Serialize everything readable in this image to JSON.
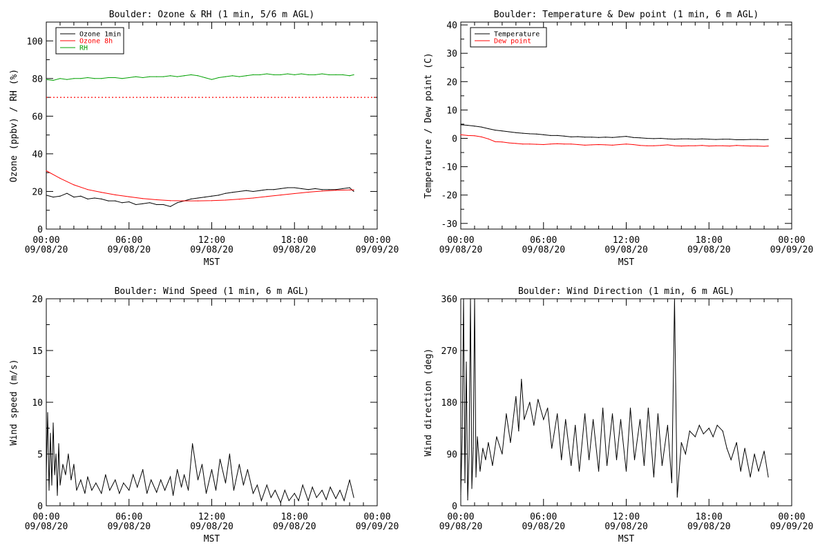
{
  "colors": {
    "black": "#000000",
    "red": "#ff0000",
    "green": "#00a000"
  },
  "chart_data": [
    {
      "type": "line",
      "title": "Boulder: Ozone & RH (1 min, 5/6 m AGL)",
      "xlabel": "MST",
      "ylabel": "Ozone (ppbv) / RH (%)",
      "xlim": [
        0,
        24
      ],
      "ylim": [
        0,
        110
      ],
      "x_ticks": [
        {
          "v": 0,
          "l1": "00:00",
          "l2": "09/08/20"
        },
        {
          "v": 6,
          "l1": "06:00",
          "l2": "09/08/20"
        },
        {
          "v": 12,
          "l1": "12:00",
          "l2": "09/08/20"
        },
        {
          "v": 18,
          "l1": "18:00",
          "l2": "09/08/20"
        },
        {
          "v": 24,
          "l1": "00:00",
          "l2": "09/09/20"
        }
      ],
      "y_ticks": [
        0,
        20,
        40,
        60,
        80,
        100
      ],
      "legend": {
        "position": "top-left",
        "entries": [
          {
            "name": "Ozone 1min",
            "color": "#000000"
          },
          {
            "name": "Ozone 8h",
            "color": "#ff0000"
          },
          {
            "name": "RH",
            "color": "#00a000"
          }
        ]
      },
      "reference_lines": [
        {
          "y": 70,
          "color": "#ff0000",
          "style": "dotted"
        }
      ],
      "series": [
        {
          "name": "Ozone 1min",
          "color": "#000000",
          "x": [
            0,
            0.5,
            1,
            1.5,
            2,
            2.5,
            3,
            3.5,
            4,
            4.5,
            5,
            5.5,
            6,
            6.5,
            7,
            7.5,
            8,
            8.5,
            9,
            9.5,
            10,
            10.5,
            11,
            11.5,
            12,
            12.5,
            13,
            13.5,
            14,
            14.5,
            15,
            15.5,
            16,
            16.5,
            17,
            17.5,
            18,
            18.5,
            19,
            19.5,
            20,
            20.5,
            21,
            21.5,
            22,
            22.3
          ],
          "y": [
            18,
            17,
            17.5,
            19,
            17,
            17.5,
            16,
            16.5,
            16,
            15,
            15,
            14,
            14.5,
            13,
            13.5,
            14,
            13,
            13,
            12,
            14,
            15,
            16,
            16.5,
            17,
            17.5,
            18,
            19,
            19.5,
            20,
            20.5,
            20,
            20.5,
            21,
            21,
            21.5,
            22,
            22,
            21.5,
            21,
            21.5,
            21,
            21,
            21,
            21.5,
            22,
            20
          ]
        },
        {
          "name": "Ozone 8h",
          "color": "#ff0000",
          "x": [
            0,
            1,
            2,
            3,
            4,
            5,
            6,
            7,
            8,
            9,
            10,
            11,
            12,
            13,
            14,
            15,
            16,
            17,
            18,
            19,
            20,
            21,
            22,
            22.3
          ],
          "y": [
            31,
            27,
            23.5,
            21,
            19.5,
            18.2,
            17.2,
            16.2,
            15.6,
            15.1,
            15,
            15,
            15.1,
            15.4,
            15.9,
            16.5,
            17.3,
            18.1,
            18.9,
            19.6,
            20.2,
            20.6,
            20.8,
            20.8
          ]
        },
        {
          "name": "RH",
          "color": "#00a000",
          "x": [
            0,
            0.5,
            1,
            1.5,
            2,
            2.5,
            3,
            3.5,
            4,
            4.5,
            5,
            5.5,
            6,
            6.5,
            7,
            7.5,
            8,
            8.5,
            9,
            9.5,
            10,
            10.5,
            11,
            11.5,
            12,
            12.5,
            13,
            13.5,
            14,
            14.5,
            15,
            15.5,
            16,
            16.5,
            17,
            17.5,
            18,
            18.5,
            19,
            19.5,
            20,
            20.5,
            21,
            21.5,
            22,
            22.3
          ],
          "y": [
            79.5,
            79,
            80,
            79.5,
            80,
            80,
            80.5,
            80,
            80,
            80.5,
            80.5,
            80,
            80.5,
            81,
            80.5,
            81,
            81,
            81,
            81.5,
            81,
            81.5,
            82,
            81.5,
            80.5,
            79.5,
            80.5,
            81,
            81.5,
            81,
            81.5,
            82,
            82,
            82.5,
            82,
            82,
            82.5,
            82,
            82.5,
            82,
            82,
            82.5,
            82,
            82,
            82,
            81.5,
            82
          ]
        }
      ]
    },
    {
      "type": "line",
      "title": "Boulder: Temperature & Dew point (1 min, 6 m AGL)",
      "xlabel": "MST",
      "ylabel": "Temperature / Dew point (C)",
      "xlim": [
        0,
        24
      ],
      "ylim": [
        -32,
        41
      ],
      "x_ticks": [
        {
          "v": 0,
          "l1": "00:00",
          "l2": "09/08/20"
        },
        {
          "v": 6,
          "l1": "06:00",
          "l2": "09/08/20"
        },
        {
          "v": 12,
          "l1": "12:00",
          "l2": "09/08/20"
        },
        {
          "v": 18,
          "l1": "18:00",
          "l2": "09/08/20"
        },
        {
          "v": 24,
          "l1": "00:00",
          "l2": "09/09/20"
        }
      ],
      "y_ticks": [
        -30,
        -20,
        -10,
        0,
        10,
        20,
        30,
        40
      ],
      "legend": {
        "position": "top-left",
        "entries": [
          {
            "name": "Temperature",
            "color": "#000000"
          },
          {
            "name": "Dew point",
            "color": "#ff0000"
          }
        ]
      },
      "series": [
        {
          "name": "Temperature",
          "color": "#000000",
          "x": [
            0,
            0.5,
            1,
            1.5,
            2,
            2.5,
            3,
            3.5,
            4,
            4.5,
            5,
            5.5,
            6,
            6.5,
            7,
            7.5,
            8,
            8.5,
            9,
            9.5,
            10,
            10.5,
            11,
            11.5,
            12,
            12.5,
            13,
            13.5,
            14,
            14.5,
            15,
            15.5,
            16,
            16.5,
            17,
            17.5,
            18,
            18.5,
            19,
            19.5,
            20,
            20.5,
            21,
            21.5,
            22,
            22.3
          ],
          "y": [
            4.8,
            4.6,
            4.3,
            4,
            3.4,
            2.9,
            2.6,
            2.3,
            2,
            1.8,
            1.6,
            1.5,
            1.3,
            1,
            1,
            0.8,
            0.5,
            0.6,
            0.4,
            0.4,
            0.3,
            0.4,
            0.3,
            0.5,
            0.7,
            0.3,
            0.2,
            0,
            -0.1,
            0,
            -0.2,
            -0.3,
            -0.2,
            -0.2,
            -0.3,
            -0.2,
            -0.3,
            -0.4,
            -0.3,
            -0.3,
            -0.5,
            -0.5,
            -0.4,
            -0.4,
            -0.5,
            -0.4
          ]
        },
        {
          "name": "Dew point",
          "color": "#ff0000",
          "x": [
            0,
            0.5,
            1,
            1.5,
            2,
            2.5,
            3,
            3.5,
            4,
            4.5,
            5,
            5.5,
            6,
            6.5,
            7,
            7.5,
            8,
            8.5,
            9,
            9.5,
            10,
            10.5,
            11,
            11.5,
            12,
            12.5,
            13,
            13.5,
            14,
            14.5,
            15,
            15.5,
            16,
            16.5,
            17,
            17.5,
            18,
            18.5,
            19,
            19.5,
            20,
            20.5,
            21,
            21.5,
            22,
            22.3
          ],
          "y": [
            1.3,
            1,
            0.9,
            0.5,
            -0.2,
            -1.2,
            -1.3,
            -1.6,
            -1.8,
            -2,
            -2,
            -2.1,
            -2.2,
            -2,
            -1.9,
            -2,
            -2,
            -2.2,
            -2.4,
            -2.3,
            -2.2,
            -2.3,
            -2.4,
            -2.2,
            -2,
            -2.2,
            -2.5,
            -2.6,
            -2.6,
            -2.5,
            -2.3,
            -2.6,
            -2.7,
            -2.6,
            -2.6,
            -2.5,
            -2.7,
            -2.6,
            -2.6,
            -2.7,
            -2.5,
            -2.6,
            -2.7,
            -2.7,
            -2.8,
            -2.7
          ]
        }
      ]
    },
    {
      "type": "line",
      "title": "Boulder: Wind Speed (1 min, 6 m AGL)",
      "xlabel": "MST",
      "ylabel": "Wind speed (m/s)",
      "xlim": [
        0,
        24
      ],
      "ylim": [
        0,
        20
      ],
      "x_ticks": [
        {
          "v": 0,
          "l1": "00:00",
          "l2": "09/08/20"
        },
        {
          "v": 6,
          "l1": "06:00",
          "l2": "09/08/20"
        },
        {
          "v": 12,
          "l1": "12:00",
          "l2": "09/08/20"
        },
        {
          "v": 18,
          "l1": "18:00",
          "l2": "09/08/20"
        },
        {
          "v": 24,
          "l1": "00:00",
          "l2": "09/09/20"
        }
      ],
      "y_ticks": [
        0,
        5,
        10,
        15,
        20
      ],
      "series": [
        {
          "name": "",
          "color": "#000000",
          "x": [
            0,
            0.1,
            0.2,
            0.3,
            0.4,
            0.5,
            0.6,
            0.7,
            0.8,
            0.9,
            1,
            1.2,
            1.4,
            1.6,
            1.8,
            2,
            2.2,
            2.5,
            2.8,
            3,
            3.3,
            3.6,
            4,
            4.3,
            4.6,
            5,
            5.3,
            5.6,
            6,
            6.3,
            6.6,
            7,
            7.3,
            7.6,
            8,
            8.3,
            8.6,
            9,
            9.2,
            9.5,
            9.8,
            10,
            10.3,
            10.6,
            11,
            11.3,
            11.6,
            12,
            12.3,
            12.6,
            13,
            13.3,
            13.6,
            14,
            14.3,
            14.6,
            15,
            15.3,
            15.6,
            16,
            16.3,
            16.6,
            17,
            17.3,
            17.6,
            18,
            18.3,
            18.6,
            19,
            19.3,
            19.6,
            20,
            20.3,
            20.6,
            21,
            21.3,
            21.6,
            22,
            22.3
          ],
          "y": [
            3,
            9,
            1.5,
            7,
            2,
            8,
            3,
            5,
            1,
            6,
            2,
            4,
            3,
            5,
            2.5,
            4,
            1.5,
            2.5,
            1.2,
            2.8,
            1.5,
            2.2,
            1.2,
            3,
            1.5,
            2.5,
            1.2,
            2.2,
            1.5,
            3,
            1.8,
            3.5,
            1.2,
            2.5,
            1.3,
            2.5,
            1.5,
            2.8,
            1,
            3.5,
            1.8,
            3,
            1.5,
            6,
            2.5,
            4,
            1.2,
            3.5,
            1.5,
            4.5,
            2.2,
            5,
            1.5,
            4,
            2,
            3.5,
            1.2,
            2,
            0.5,
            2,
            0.8,
            1.5,
            0.3,
            1.5,
            0.5,
            1.2,
            0.5,
            2,
            0.5,
            1.8,
            0.8,
            1.5,
            0.6,
            1.8,
            0.7,
            1.5,
            0.5,
            2.5,
            0.8
          ]
        }
      ]
    },
    {
      "type": "line",
      "title": "Boulder: Wind Direction (1 min, 6 m AGL)",
      "xlabel": "MST",
      "ylabel": "Wind direction (deg)",
      "xlim": [
        0,
        24
      ],
      "ylim": [
        0,
        360
      ],
      "x_ticks": [
        {
          "v": 0,
          "l1": "00:00",
          "l2": "09/08/20"
        },
        {
          "v": 6,
          "l1": "06:00",
          "l2": "09/08/20"
        },
        {
          "v": 12,
          "l1": "12:00",
          "l2": "09/08/20"
        },
        {
          "v": 18,
          "l1": "18:00",
          "l2": "09/08/20"
        },
        {
          "v": 24,
          "l1": "00:00",
          "l2": "09/09/20"
        }
      ],
      "y_ticks": [
        0,
        90,
        180,
        270,
        360
      ],
      "series": [
        {
          "name": "",
          "color": "#000000",
          "x": [
            0,
            0.1,
            0.2,
            0.3,
            0.4,
            0.5,
            0.6,
            0.7,
            0.8,
            0.9,
            1,
            1.1,
            1.2,
            1.4,
            1.6,
            1.8,
            2,
            2.3,
            2.6,
            3,
            3.3,
            3.6,
            4,
            4.2,
            4.4,
            4.6,
            5,
            5.3,
            5.6,
            6,
            6.3,
            6.6,
            7,
            7.3,
            7.6,
            8,
            8.3,
            8.6,
            9,
            9.3,
            9.6,
            10,
            10.3,
            10.6,
            11,
            11.3,
            11.6,
            12,
            12.3,
            12.6,
            13,
            13.3,
            13.6,
            14,
            14.3,
            14.6,
            15,
            15.3,
            15.5,
            15.7,
            16,
            16.3,
            16.6,
            17,
            17.3,
            17.6,
            18,
            18.3,
            18.6,
            19,
            19.3,
            19.6,
            20,
            20.3,
            20.6,
            21,
            21.3,
            21.6,
            22,
            22.3
          ],
          "y": [
            20,
            120,
            360,
            40,
            250,
            10,
            90,
            360,
            30,
            100,
            360,
            50,
            120,
            60,
            100,
            80,
            110,
            70,
            120,
            90,
            160,
            110,
            190,
            130,
            220,
            150,
            180,
            140,
            185,
            150,
            170,
            100,
            160,
            80,
            150,
            70,
            140,
            60,
            160,
            80,
            150,
            60,
            170,
            70,
            160,
            80,
            150,
            60,
            170,
            80,
            150,
            70,
            170,
            50,
            160,
            70,
            140,
            40,
            360,
            15,
            110,
            90,
            130,
            120,
            140,
            125,
            135,
            120,
            140,
            130,
            100,
            80,
            110,
            60,
            100,
            50,
            90,
            60,
            95,
            50
          ]
        }
      ]
    }
  ]
}
